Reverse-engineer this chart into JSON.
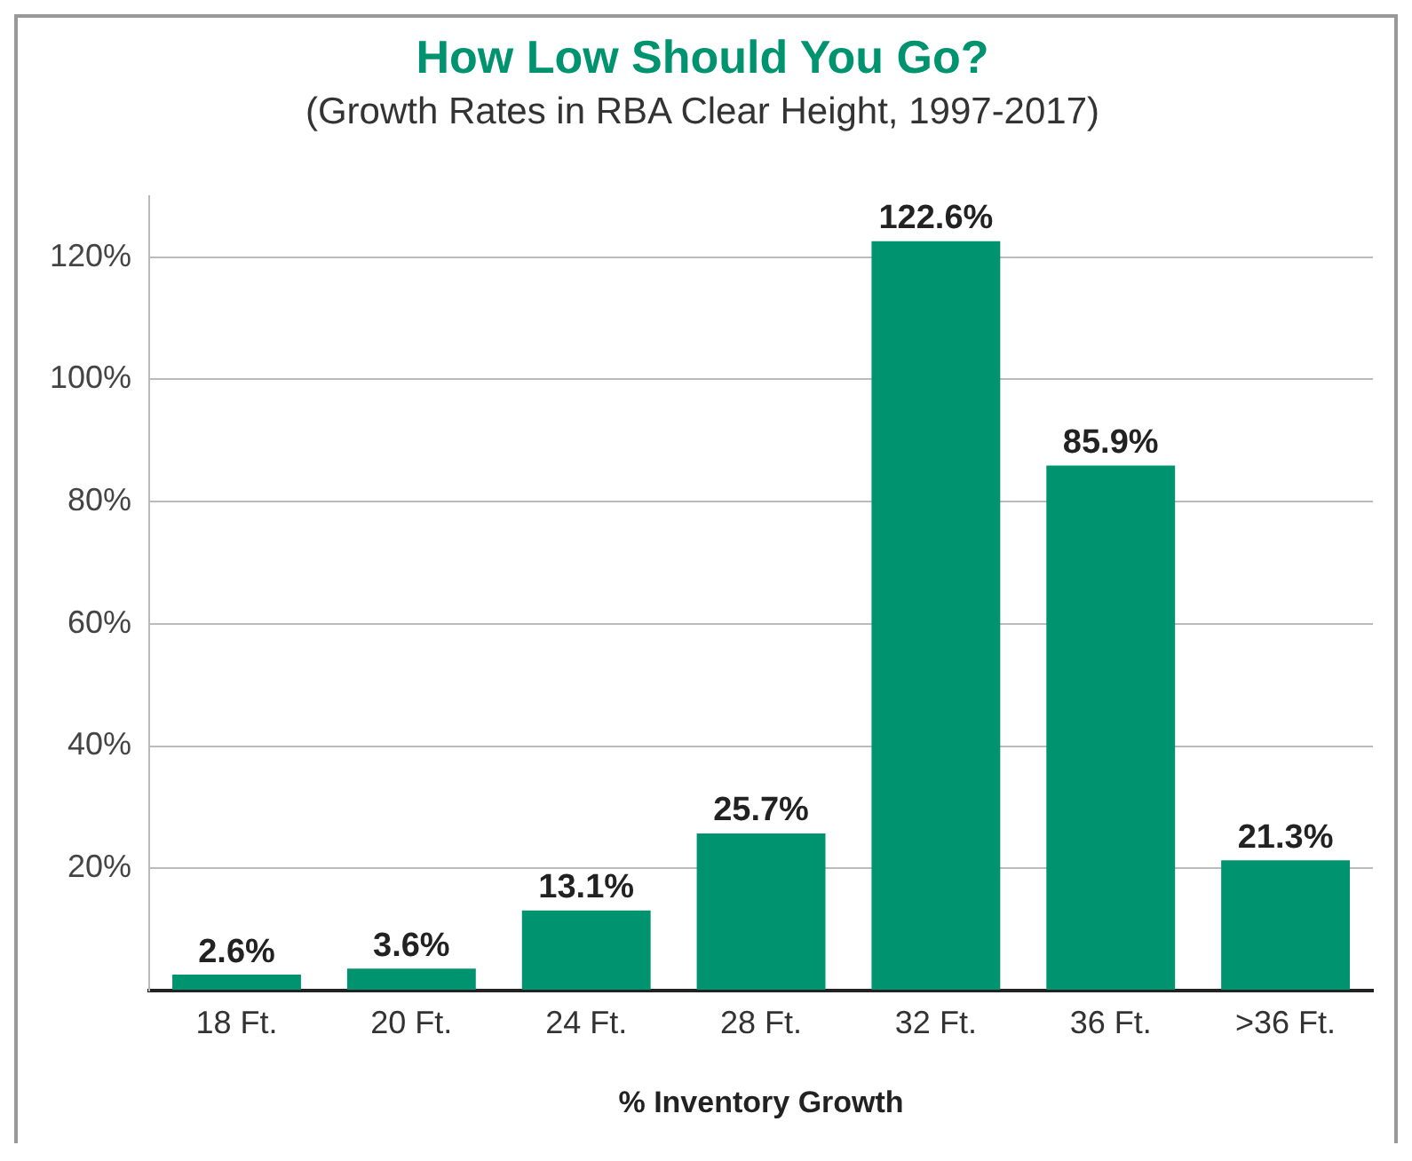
{
  "chart_data": {
    "type": "bar",
    "title": "How Low Should You Go?",
    "subtitle": "(Growth Rates in RBA Clear Height, 1997-2017)",
    "xlabel": "% Inventory Growth",
    "categories": [
      "18 Ft.",
      "20 Ft.",
      "24 Ft.",
      "28 Ft.",
      "32 Ft.",
      "36 Ft.",
      ">36 Ft."
    ],
    "values": [
      2.6,
      3.6,
      13.1,
      25.7,
      122.6,
      85.9,
      21.3
    ],
    "value_labels": [
      "2.6%",
      "3.6%",
      "13.1%",
      "25.7%",
      "122.6%",
      "85.9%",
      "21.3%"
    ],
    "color": "#009370",
    "ylim": [
      0,
      130
    ],
    "yticks": [
      {
        "value": 0,
        "label": null
      },
      {
        "value": 20,
        "label": "20%"
      },
      {
        "value": 40,
        "label": "40%"
      },
      {
        "value": 60,
        "label": "60%"
      },
      {
        "value": 80,
        "label": "80%"
      },
      {
        "value": 100,
        "label": "100%"
      },
      {
        "value": 120,
        "label": "120%"
      }
    ],
    "grid": "y",
    "legend": false
  }
}
